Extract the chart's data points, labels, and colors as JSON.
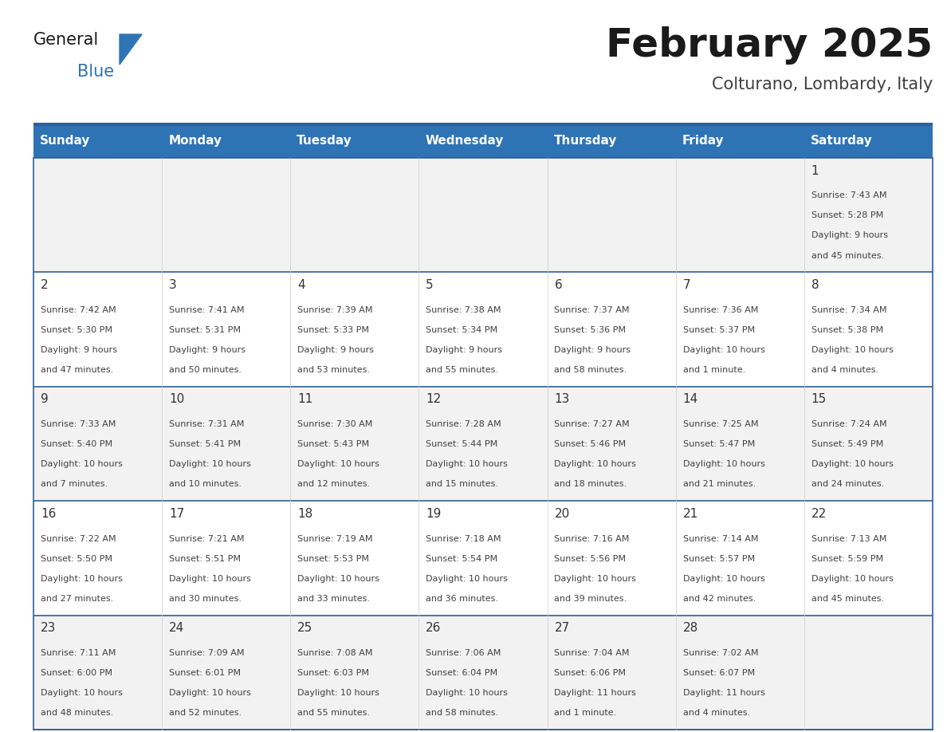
{
  "title": "February 2025",
  "subtitle": "Colturano, Lombardy, Italy",
  "days_of_week": [
    "Sunday",
    "Monday",
    "Tuesday",
    "Wednesday",
    "Thursday",
    "Friday",
    "Saturday"
  ],
  "header_bg": "#2E74B5",
  "header_text": "#FFFFFF",
  "row_bg_light": "#F2F2F2",
  "row_bg_white": "#FFFFFF",
  "divider_color": "#2E6099",
  "day_number_color": "#333333",
  "info_text_color": "#404040",
  "logo_general_color": "#1A1A1A",
  "logo_blue_color": "#2E74B5",
  "logo_triangle_color": "#2E74B5",
  "calendar_data": [
    {
      "day": 1,
      "col": 6,
      "row": 0,
      "sunrise": "7:43 AM",
      "sunset": "5:28 PM",
      "daylight": "9 hours and 45 minutes."
    },
    {
      "day": 2,
      "col": 0,
      "row": 1,
      "sunrise": "7:42 AM",
      "sunset": "5:30 PM",
      "daylight": "9 hours and 47 minutes."
    },
    {
      "day": 3,
      "col": 1,
      "row": 1,
      "sunrise": "7:41 AM",
      "sunset": "5:31 PM",
      "daylight": "9 hours and 50 minutes."
    },
    {
      "day": 4,
      "col": 2,
      "row": 1,
      "sunrise": "7:39 AM",
      "sunset": "5:33 PM",
      "daylight": "9 hours and 53 minutes."
    },
    {
      "day": 5,
      "col": 3,
      "row": 1,
      "sunrise": "7:38 AM",
      "sunset": "5:34 PM",
      "daylight": "9 hours and 55 minutes."
    },
    {
      "day": 6,
      "col": 4,
      "row": 1,
      "sunrise": "7:37 AM",
      "sunset": "5:36 PM",
      "daylight": "9 hours and 58 minutes."
    },
    {
      "day": 7,
      "col": 5,
      "row": 1,
      "sunrise": "7:36 AM",
      "sunset": "5:37 PM",
      "daylight": "10 hours and 1 minute."
    },
    {
      "day": 8,
      "col": 6,
      "row": 1,
      "sunrise": "7:34 AM",
      "sunset": "5:38 PM",
      "daylight": "10 hours and 4 minutes."
    },
    {
      "day": 9,
      "col": 0,
      "row": 2,
      "sunrise": "7:33 AM",
      "sunset": "5:40 PM",
      "daylight": "10 hours and 7 minutes."
    },
    {
      "day": 10,
      "col": 1,
      "row": 2,
      "sunrise": "7:31 AM",
      "sunset": "5:41 PM",
      "daylight": "10 hours and 10 minutes."
    },
    {
      "day": 11,
      "col": 2,
      "row": 2,
      "sunrise": "7:30 AM",
      "sunset": "5:43 PM",
      "daylight": "10 hours and 12 minutes."
    },
    {
      "day": 12,
      "col": 3,
      "row": 2,
      "sunrise": "7:28 AM",
      "sunset": "5:44 PM",
      "daylight": "10 hours and 15 minutes."
    },
    {
      "day": 13,
      "col": 4,
      "row": 2,
      "sunrise": "7:27 AM",
      "sunset": "5:46 PM",
      "daylight": "10 hours and 18 minutes."
    },
    {
      "day": 14,
      "col": 5,
      "row": 2,
      "sunrise": "7:25 AM",
      "sunset": "5:47 PM",
      "daylight": "10 hours and 21 minutes."
    },
    {
      "day": 15,
      "col": 6,
      "row": 2,
      "sunrise": "7:24 AM",
      "sunset": "5:49 PM",
      "daylight": "10 hours and 24 minutes."
    },
    {
      "day": 16,
      "col": 0,
      "row": 3,
      "sunrise": "7:22 AM",
      "sunset": "5:50 PM",
      "daylight": "10 hours and 27 minutes."
    },
    {
      "day": 17,
      "col": 1,
      "row": 3,
      "sunrise": "7:21 AM",
      "sunset": "5:51 PM",
      "daylight": "10 hours and 30 minutes."
    },
    {
      "day": 18,
      "col": 2,
      "row": 3,
      "sunrise": "7:19 AM",
      "sunset": "5:53 PM",
      "daylight": "10 hours and 33 minutes."
    },
    {
      "day": 19,
      "col": 3,
      "row": 3,
      "sunrise": "7:18 AM",
      "sunset": "5:54 PM",
      "daylight": "10 hours and 36 minutes."
    },
    {
      "day": 20,
      "col": 4,
      "row": 3,
      "sunrise": "7:16 AM",
      "sunset": "5:56 PM",
      "daylight": "10 hours and 39 minutes."
    },
    {
      "day": 21,
      "col": 5,
      "row": 3,
      "sunrise": "7:14 AM",
      "sunset": "5:57 PM",
      "daylight": "10 hours and 42 minutes."
    },
    {
      "day": 22,
      "col": 6,
      "row": 3,
      "sunrise": "7:13 AM",
      "sunset": "5:59 PM",
      "daylight": "10 hours and 45 minutes."
    },
    {
      "day": 23,
      "col": 0,
      "row": 4,
      "sunrise": "7:11 AM",
      "sunset": "6:00 PM",
      "daylight": "10 hours and 48 minutes."
    },
    {
      "day": 24,
      "col": 1,
      "row": 4,
      "sunrise": "7:09 AM",
      "sunset": "6:01 PM",
      "daylight": "10 hours and 52 minutes."
    },
    {
      "day": 25,
      "col": 2,
      "row": 4,
      "sunrise": "7:08 AM",
      "sunset": "6:03 PM",
      "daylight": "10 hours and 55 minutes."
    },
    {
      "day": 26,
      "col": 3,
      "row": 4,
      "sunrise": "7:06 AM",
      "sunset": "6:04 PM",
      "daylight": "10 hours and 58 minutes."
    },
    {
      "day": 27,
      "col": 4,
      "row": 4,
      "sunrise": "7:04 AM",
      "sunset": "6:06 PM",
      "daylight": "11 hours and 1 minute."
    },
    {
      "day": 28,
      "col": 5,
      "row": 4,
      "sunrise": "7:02 AM",
      "sunset": "6:07 PM",
      "daylight": "11 hours and 4 minutes."
    }
  ]
}
